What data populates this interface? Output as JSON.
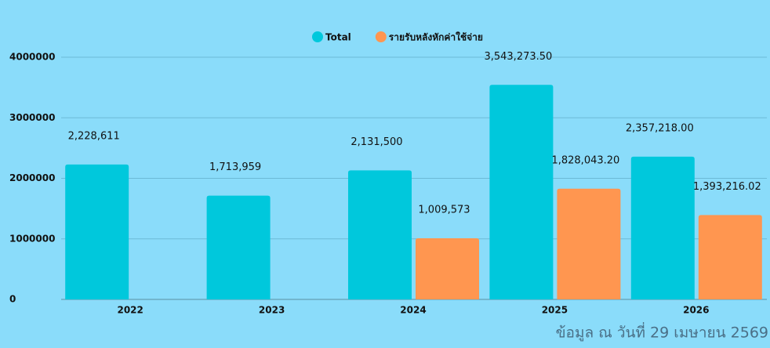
{
  "chart_data": {
    "type": "bar",
    "categories": [
      "2022",
      "2023",
      "2024",
      "2025",
      "2026"
    ],
    "series": [
      {
        "name": "Total",
        "color": "#00c8dc",
        "values": [
          2228611,
          1713959,
          2131500,
          3543273.5,
          2357218
        ],
        "value_labels": [
          "2,228,611",
          "1,713,959",
          "2,131,500",
          "3,543,273.50",
          "2,357,218.00"
        ]
      },
      {
        "name": "รายรับหลังหักค่าใช้จ่าย",
        "color": "#ff9650",
        "values": [
          null,
          null,
          1009573,
          1828043.2,
          1393216.02
        ],
        "value_labels": [
          null,
          null,
          "1,009,573",
          "1,828,043.20",
          "1,393,216.02"
        ]
      }
    ],
    "ylim": [
      0,
      4000000
    ],
    "yticks": [
      0,
      1000000,
      2000000,
      3000000,
      4000000
    ],
    "grid": true,
    "legend": "top",
    "annotation": "ข้อมูล ณ วันที่ 29 เมษายน 2569"
  }
}
